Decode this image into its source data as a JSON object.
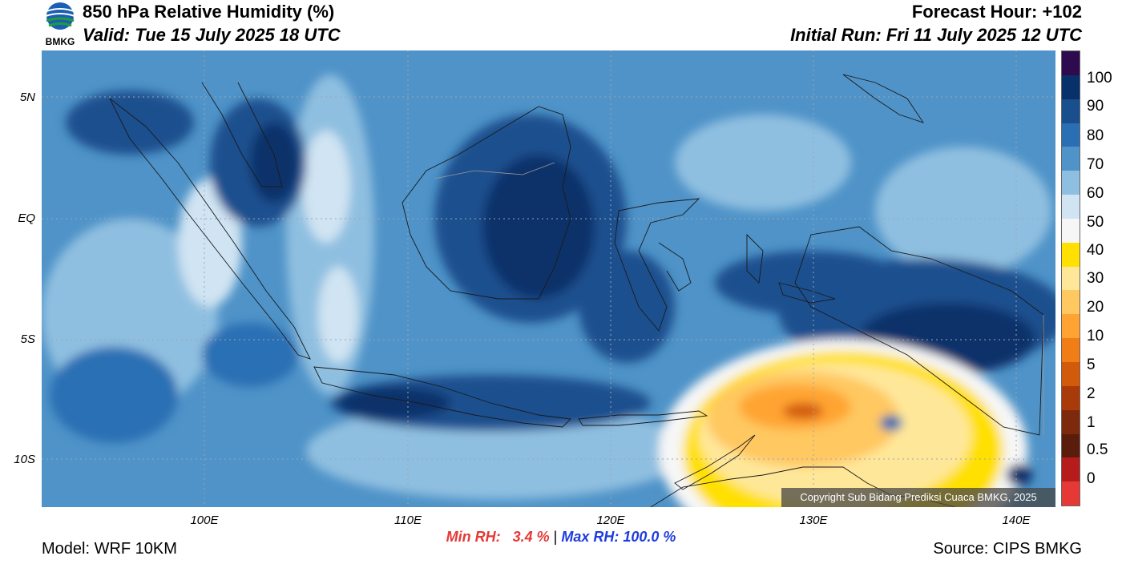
{
  "header": {
    "title": "850 hPa Relative Humidity (%)",
    "valid": "Valid: Tue 15 July 2025 18 UTC",
    "forecast_hour": "Forecast Hour: +102",
    "initial_run": "Initial Run: Fri 11 July 2025 12 UTC"
  },
  "logo": {
    "text": "BMKG"
  },
  "axes": {
    "lat_labels": [
      "5N",
      "EQ",
      "5S",
      "10S"
    ],
    "lon_labels": [
      "100E",
      "110E",
      "120E",
      "130E",
      "140E"
    ]
  },
  "colorbar": {
    "labels": [
      "100",
      "90",
      "80",
      "70",
      "60",
      "50",
      "40",
      "30",
      "20",
      "10",
      "5",
      "2",
      "1",
      "0.5",
      "0"
    ],
    "colors": [
      "#2e0a4e",
      "#08306b",
      "#1a4f8e",
      "#2a6fb4",
      "#4f93c8",
      "#8fbfe0",
      "#d0e4f3",
      "#f6f6f6",
      "#ffe000",
      "#ffe79a",
      "#ffc860",
      "#ffa433",
      "#f07d16",
      "#d25a0b",
      "#a93a09",
      "#7d2a0c",
      "#5b1d0b",
      "#b71c1c",
      "#e53935"
    ]
  },
  "copyright": "Copyright Sub Bidang Prediksi Cuaca BMKG, 2025",
  "stats": {
    "min_label": "Min RH:",
    "min_value": "3.4 %",
    "separator": "|",
    "max_label": "Max RH:",
    "max_value": "100.0 %"
  },
  "footer": {
    "model": "Model: WRF 10KM",
    "source": "Source: CIPS BMKG"
  }
}
